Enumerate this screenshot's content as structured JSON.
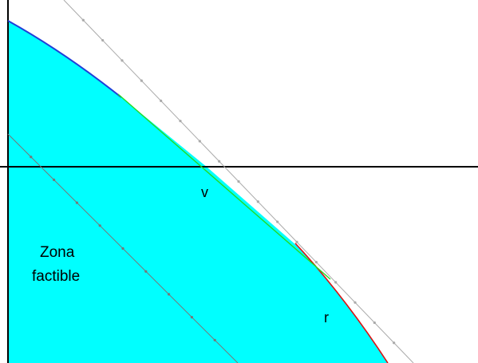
{
  "labels": {
    "zone_line1": "Zona",
    "zone_line2": "factible",
    "vertex": "v",
    "line": "r"
  },
  "colors": {
    "feasible_fill": "#00ffff",
    "boundary_blue": "#1f3fd8",
    "tangent_green": "#22dd22",
    "boundary_red": "#dd1111",
    "reference_line_gray": "#aaaaaa",
    "reference_line_dark": "#777777",
    "axis": "#000000"
  }
}
